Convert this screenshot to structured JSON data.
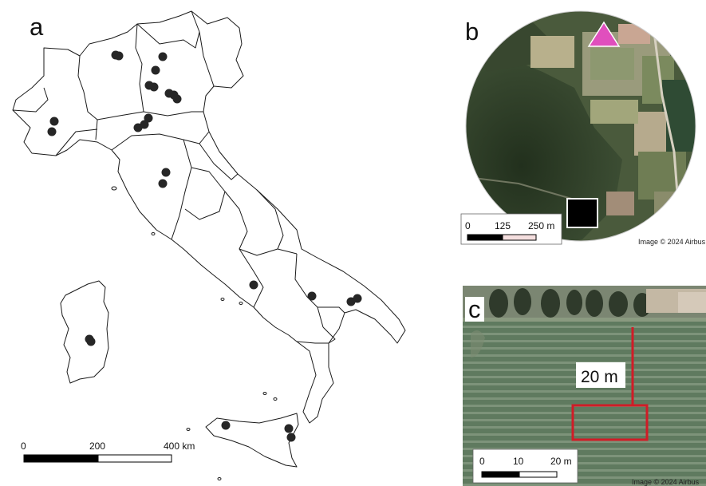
{
  "panel_a": {
    "letter": "a",
    "scalebar": {
      "labels": [
        "0",
        "200",
        "400 km"
      ]
    },
    "site_marker_color": "#262626",
    "boundary_color": "#1a1a1a"
  },
  "panel_b": {
    "letter": "b",
    "scalebar": {
      "labels": [
        "0",
        "125",
        "250 m"
      ]
    },
    "credit": "Image © 2024 Airbus",
    "triangle_color": "#e04fbd",
    "square_color": "#000000",
    "triangle_icon": "pink-triangle",
    "square_icon": "black-square"
  },
  "panel_c": {
    "letter": "c",
    "distance_label": "20 m",
    "scalebar": {
      "labels": [
        "0",
        "10",
        "20 m"
      ]
    },
    "credit": "Image © 2024 Airbus",
    "line_color": "#d01c27"
  }
}
